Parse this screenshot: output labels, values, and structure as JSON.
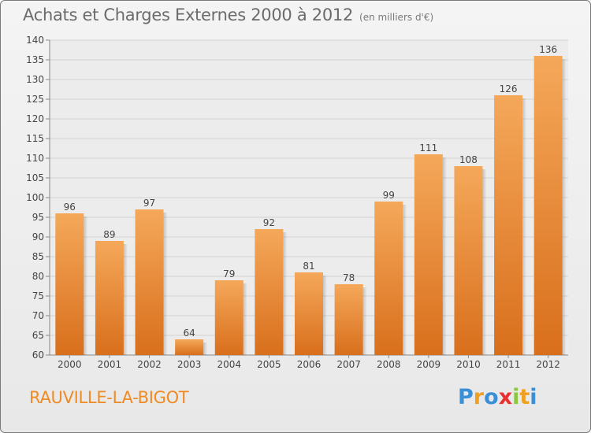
{
  "title": "Achats et Charges Externes 2000 à 2012",
  "subtitle": "(en milliers d'€)",
  "location": "RAUVILLE-LA-BIGOT",
  "logo": {
    "letters": [
      {
        "char": "P",
        "color": "#3a8fd6"
      },
      {
        "char": "r",
        "color": "#f0a020"
      },
      {
        "char": "o",
        "color": "#3a8fd6"
      },
      {
        "char": "x",
        "color": "#e83030"
      },
      {
        "char": "i",
        "color": "#8cc63f"
      },
      {
        "char": "t",
        "color": "#f0a020"
      },
      {
        "char": "i",
        "color": "#3a8fd6"
      }
    ]
  },
  "colors": {
    "bar_top": "#f5a85a",
    "bar_bottom": "#d86f1c",
    "accent": "#f08a24"
  },
  "chart_data": {
    "type": "bar",
    "categories": [
      "2000",
      "2001",
      "2002",
      "2003",
      "2004",
      "2005",
      "2006",
      "2007",
      "2008",
      "2009",
      "2010",
      "2011",
      "2012"
    ],
    "values": [
      96,
      89,
      97,
      64,
      79,
      92,
      81,
      78,
      99,
      111,
      108,
      126,
      136
    ],
    "ylim": [
      60,
      140
    ],
    "yticks": [
      60,
      65,
      70,
      75,
      80,
      85,
      90,
      95,
      100,
      105,
      110,
      115,
      120,
      125,
      130,
      135,
      140
    ],
    "grid": true,
    "data_labels": true
  }
}
